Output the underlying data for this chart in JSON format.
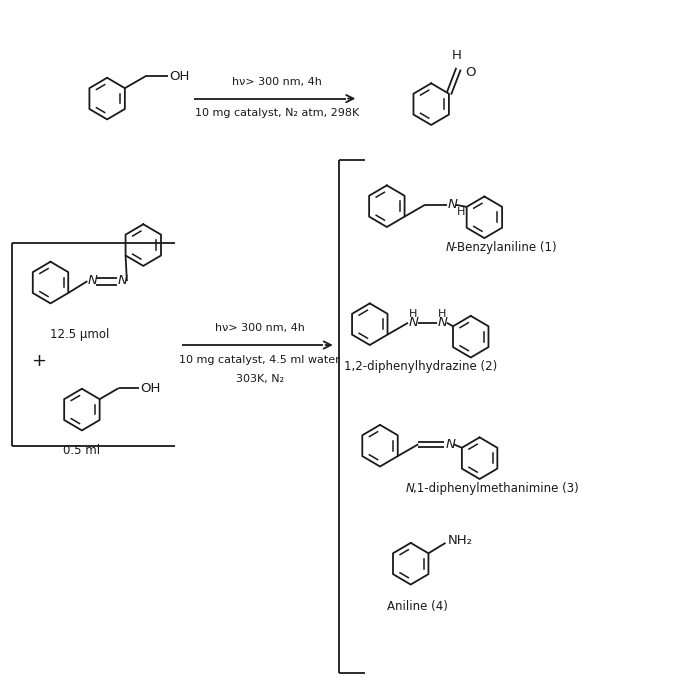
{
  "bg_color": "#ffffff",
  "line_color": "#1a1a1a",
  "text_color": "#1a1a1a",
  "figsize": [
    6.85,
    6.97
  ],
  "dpi": 100,
  "reaction1_top": "hν> 300 nm, 4h",
  "reaction1_bot": "10 mg catalyst, N₂ atm, 298K",
  "reaction2_top": "hν> 300 nm, 4h",
  "reaction2_mid": "10 mg catalyst, 4.5 ml water",
  "reaction2_bot": "303K, N₂",
  "mol1_sub": "12.5 μmol",
  "mol2_sub": "0.5 ml",
  "p1_name_italic": "N",
  "p1_name_rest": "-Benzylaniline (1)",
  "p2_name": "1,2-diphenylhydrazine (2)",
  "p3_name_italic": "N",
  "p3_name_rest": ",1-diphenylmethanimine (3)",
  "p4_name": "Aniline (4)"
}
